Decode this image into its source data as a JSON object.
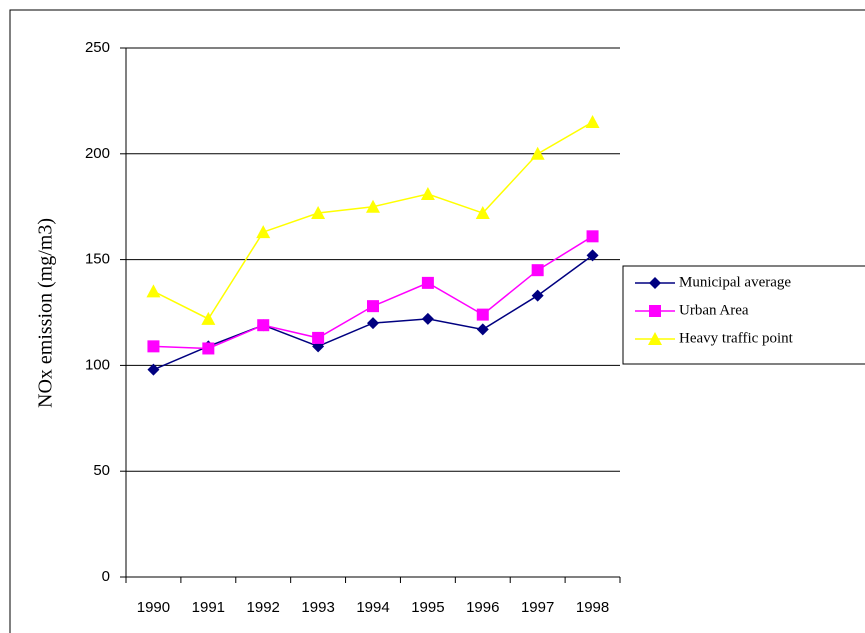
{
  "chart_data": {
    "type": "line",
    "y_label": "NOx emission (mg/m3)",
    "categories": [
      "1990",
      "1991",
      "1992",
      "1993",
      "1994",
      "1995",
      "1996",
      "1997",
      "1998"
    ],
    "series": [
      {
        "name": "Municipal average",
        "color": "#000080",
        "marker": "diamond",
        "values": [
          98,
          109,
          119,
          109,
          120,
          122,
          117,
          133,
          152
        ]
      },
      {
        "name": "Urban Area",
        "color": "#ff00ff",
        "marker": "square",
        "values": [
          109,
          108,
          119,
          113,
          128,
          139,
          124,
          145,
          161
        ]
      },
      {
        "name": "Heavy traffic point",
        "color": "#ffff00",
        "marker": "triangle",
        "values": [
          135,
          122,
          163,
          172,
          175,
          181,
          172,
          200,
          215
        ]
      }
    ],
    "ylim": [
      0,
      250
    ],
    "yticks": [
      0,
      50,
      100,
      150,
      200,
      250
    ],
    "grid": true,
    "legend": "right"
  }
}
